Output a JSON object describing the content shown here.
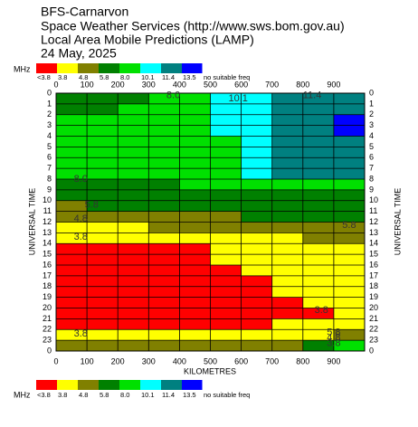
{
  "chart_data": {
    "type": "contour",
    "title_lines": [
      "BFS-Carnarvon",
      "Space Weather Services (http://www.sws.bom.gov.au)",
      "Local Area Mobile Predictions (LAMP)",
      "24 May, 2025"
    ],
    "unit": "MHz",
    "x_label": "KILOMETRES",
    "y_label": "UNIVERSAL TIME",
    "xlim": [
      0,
      1000
    ],
    "ylim": [
      0,
      24
    ],
    "y_inverted": true,
    "xticks": [
      0,
      100,
      200,
      300,
      400,
      500,
      600,
      700,
      800,
      900
    ],
    "yticks": [
      0,
      1,
      2,
      3,
      4,
      5,
      6,
      7,
      8,
      9,
      10,
      11,
      12,
      13,
      14,
      15,
      16,
      17,
      18,
      19,
      20,
      21,
      22,
      23,
      {
        "value": 24,
        "label": "0"
      }
    ],
    "grid": true,
    "legend": [
      {
        "label": "<3.8",
        "color": "#ff0000"
      },
      {
        "value": 3.8,
        "label": "3.8",
        "color": "#ffff00"
      },
      {
        "value": 4.8,
        "label": "4.8",
        "color": "#808000"
      },
      {
        "value": 5.8,
        "label": "5.8",
        "color": "#008000"
      },
      {
        "value": 8.0,
        "label": "8.0",
        "color": "#00e000"
      },
      {
        "value": 10.1,
        "label": "10.1",
        "color": "#00ffff"
      },
      {
        "value": 11.4,
        "label": "11.4",
        "color": "#008080"
      },
      {
        "value": 13.5,
        "label": "13.5",
        "color": "#0000ff"
      },
      {
        "label": "no suitable freq",
        "color": "#ffffff"
      }
    ],
    "cell_x": [
      0,
      100,
      200,
      300,
      400,
      500,
      600,
      700,
      800,
      900,
      1000
    ],
    "cell_y": [
      0,
      1,
      2,
      3,
      4,
      5,
      6,
      7,
      8,
      9,
      10,
      11,
      12,
      13,
      14,
      15,
      16,
      17,
      18,
      19,
      20,
      21,
      22,
      23,
      24
    ],
    "z": [
      [
        7,
        7,
        7,
        9,
        9,
        10.8,
        10.8,
        12.5,
        12.5,
        12.5
      ],
      [
        7,
        7,
        9,
        9,
        9,
        10.8,
        10.8,
        12.5,
        12.5,
        12.5
      ],
      [
        9,
        9,
        9,
        9,
        9,
        10.8,
        10.8,
        12.5,
        12.5,
        14
      ],
      [
        9,
        9,
        9,
        9,
        9,
        10.8,
        10.8,
        12.5,
        12.5,
        14
      ],
      [
        9,
        9,
        9,
        9,
        9,
        9,
        10.8,
        12.5,
        12.5,
        12.5
      ],
      [
        9,
        9,
        9,
        9,
        9,
        9,
        10.8,
        12.5,
        12.5,
        12.5
      ],
      [
        9,
        9,
        9,
        9,
        9,
        9,
        10.8,
        12.5,
        12.5,
        12.5
      ],
      [
        9,
        9,
        9,
        9,
        9,
        9,
        10.8,
        12.5,
        12.5,
        12.5
      ],
      [
        7,
        7,
        7,
        7,
        9,
        9,
        9,
        9,
        9,
        9
      ],
      [
        7,
        7,
        7,
        7,
        7,
        7,
        7,
        7,
        7,
        7
      ],
      [
        5.3,
        7,
        7,
        7,
        7,
        7,
        7,
        7,
        7,
        7
      ],
      [
        5.3,
        5.3,
        5.3,
        5.3,
        5.3,
        5.3,
        7,
        7,
        7,
        7
      ],
      [
        4.3,
        4.3,
        4.3,
        5.3,
        5.3,
        5.3,
        5.3,
        5.3,
        5.3,
        5.3
      ],
      [
        4.3,
        4.3,
        4.3,
        4.3,
        4.3,
        4.3,
        4.3,
        4.3,
        5.3,
        5.3
      ],
      [
        3,
        3,
        3,
        3,
        3,
        4.3,
        4.3,
        4.3,
        4.3,
        4.3
      ],
      [
        3,
        3,
        3,
        3,
        3,
        4.3,
        4.3,
        4.3,
        4.3,
        4.3
      ],
      [
        3,
        3,
        3,
        3,
        3,
        3,
        4.3,
        4.3,
        4.3,
        4.3
      ],
      [
        3,
        3,
        3,
        3,
        3,
        3,
        3,
        4.3,
        4.3,
        4.3
      ],
      [
        3,
        3,
        3,
        3,
        3,
        3,
        3,
        4.3,
        4.3,
        4.3
      ],
      [
        3,
        3,
        3,
        3,
        3,
        3,
        3,
        3,
        4.3,
        4.3
      ],
      [
        3,
        3,
        3,
        3,
        3,
        3,
        3,
        3,
        3,
        4.3
      ],
      [
        3,
        3,
        3,
        3,
        3,
        3,
        3,
        4.3,
        4.3,
        4.3
      ],
      [
        4.3,
        4.3,
        4.3,
        4.3,
        4.3,
        4.3,
        4.3,
        4.3,
        4.3,
        5.3
      ],
      [
        5.3,
        5.3,
        5.3,
        5.3,
        5.3,
        5.3,
        5.3,
        5.3,
        7,
        9
      ]
    ],
    "annotations": [
      {
        "text": "8.0",
        "x": 380,
        "y": 0.2
      },
      {
        "text": "10.1",
        "x": 590,
        "y": 0.5
      },
      {
        "text": "11.4",
        "x": 830,
        "y": 0.2
      },
      {
        "text": "8.0",
        "x": 80,
        "y": 8.0
      },
      {
        "text": "5.8",
        "x": 115,
        "y": 10.4
      },
      {
        "text": "4.8",
        "x": 80,
        "y": 11.7
      },
      {
        "text": "3.8",
        "x": 80,
        "y": 13.4
      },
      {
        "text": "5.8",
        "x": 950,
        "y": 12.3
      },
      {
        "text": "3.8",
        "x": 860,
        "y": 20.2
      },
      {
        "text": "3.8",
        "x": 80,
        "y": 22.4
      },
      {
        "text": "5.8",
        "x": 900,
        "y": 22.3
      },
      {
        "text": "4.8",
        "x": 900,
        "y": 22.8
      },
      {
        "text": "3.8",
        "x": 900,
        "y": 23.3
      }
    ]
  }
}
